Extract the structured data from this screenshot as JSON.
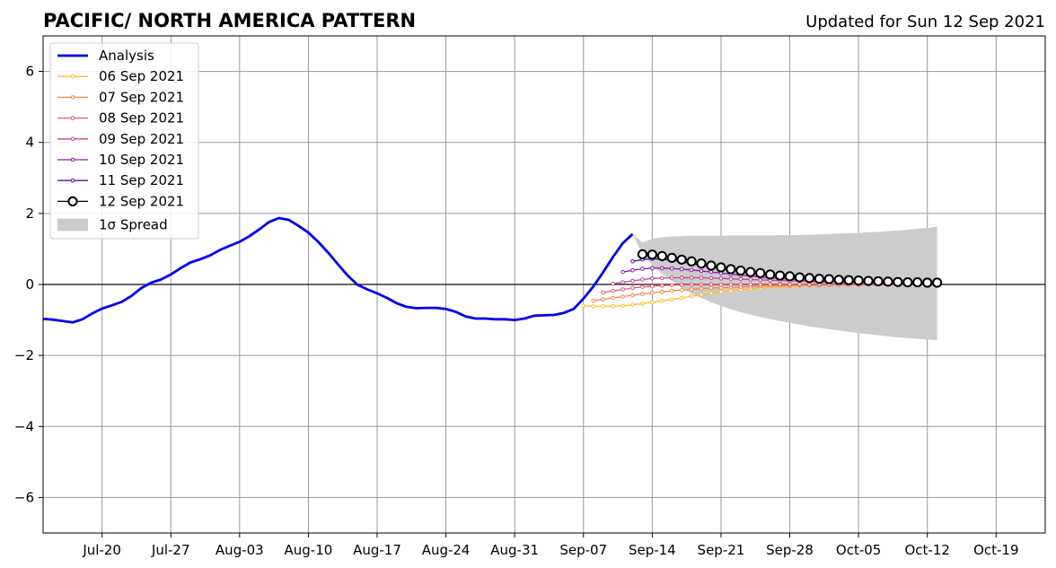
{
  "header": {
    "title": "PACIFIC/ NORTH AMERICA PATTERN",
    "updated": "Updated for Sun 12 Sep 2021"
  },
  "chart_data": {
    "type": "line",
    "title": "PACIFIC/ NORTH AMERICA PATTERN",
    "subtitle": "Updated for Sun 12 Sep 2021",
    "xlabel": "",
    "ylabel": "",
    "x_unit": "days since Jul-14",
    "xlim": [
      0,
      102
    ],
    "ylim": [
      -7,
      7
    ],
    "x_ticks": [
      {
        "x": 6,
        "label": "Jul-20"
      },
      {
        "x": 13,
        "label": "Jul-27"
      },
      {
        "x": 20,
        "label": "Aug-03"
      },
      {
        "x": 27,
        "label": "Aug-10"
      },
      {
        "x": 34,
        "label": "Aug-17"
      },
      {
        "x": 41,
        "label": "Aug-24"
      },
      {
        "x": 48,
        "label": "Aug-31"
      },
      {
        "x": 55,
        "label": "Sep-07"
      },
      {
        "x": 62,
        "label": "Sep-14"
      },
      {
        "x": 69,
        "label": "Sep-21"
      },
      {
        "x": 76,
        "label": "Sep-28"
      },
      {
        "x": 83,
        "label": "Oct-05"
      },
      {
        "x": 90,
        "label": "Oct-12"
      },
      {
        "x": 97,
        "label": "Oct-19"
      }
    ],
    "y_ticks": [
      {
        "y": 6,
        "label": "6"
      },
      {
        "y": 4,
        "label": "4"
      },
      {
        "y": 2,
        "label": "2"
      },
      {
        "y": 0,
        "label": "0"
      },
      {
        "y": -2,
        "label": "−2"
      },
      {
        "y": -4,
        "label": "−4"
      },
      {
        "y": -6,
        "label": "−6"
      }
    ],
    "grid": true,
    "legend": {
      "placement": "top-left",
      "spread_label": "1σ Spread"
    },
    "analysis": {
      "name": "Analysis",
      "color": "#0000ee",
      "x0": 0,
      "values": [
        -0.97,
        -0.99,
        -1.03,
        -1.07,
        -0.98,
        -0.82,
        -0.68,
        -0.59,
        -0.49,
        -0.32,
        -0.1,
        0.05,
        0.14,
        0.28,
        0.46,
        0.62,
        0.71,
        0.82,
        0.97,
        1.09,
        1.2,
        1.36,
        1.55,
        1.76,
        1.87,
        1.82,
        1.65,
        1.46,
        1.2,
        0.9,
        0.57,
        0.25,
        -0.01,
        -0.14,
        -0.25,
        -0.38,
        -0.53,
        -0.63,
        -0.67,
        -0.66,
        -0.66,
        -0.69,
        -0.77,
        -0.9,
        -0.96,
        -0.96,
        -0.98,
        -0.98,
        -1.0,
        -0.96,
        -0.88,
        -0.87,
        -0.86,
        -0.8,
        -0.69,
        -0.4,
        -0.06,
        0.34,
        0.77,
        1.16,
        1.42
      ]
    },
    "forecasts": [
      {
        "name": "06 Sep 2021",
        "color": "#fbbd2e",
        "x0": 55,
        "values": [
          -0.6,
          -0.62,
          -0.62,
          -0.61,
          -0.6,
          -0.57,
          -0.54,
          -0.5,
          -0.46,
          -0.42,
          -0.38,
          -0.33,
          -0.29,
          -0.25,
          -0.21,
          -0.18,
          -0.15,
          -0.12,
          -0.1,
          -0.08,
          -0.06,
          -0.05,
          -0.04,
          -0.03,
          -0.02,
          -0.02,
          -0.01,
          -0.01,
          -0.01,
          0.0,
          0.0,
          0.0,
          0.0,
          0.0,
          0.0,
          0.0
        ]
      },
      {
        "name": "07 Sep 2021",
        "color": "#f4854a",
        "x0": 56,
        "values": [
          -0.46,
          -0.42,
          -0.38,
          -0.34,
          -0.3,
          -0.27,
          -0.24,
          -0.21,
          -0.18,
          -0.16,
          -0.14,
          -0.12,
          -0.1,
          -0.09,
          -0.08,
          -0.07,
          -0.06,
          -0.05,
          -0.04,
          -0.03,
          -0.03,
          -0.02,
          -0.02,
          -0.02,
          -0.01,
          -0.01,
          -0.01,
          -0.01,
          0.0,
          0.0,
          0.0,
          0.0,
          0.0,
          0.0,
          0.0
        ]
      },
      {
        "name": "08 Sep 2021",
        "color": "#e3587a",
        "x0": 57,
        "values": [
          -0.23,
          -0.18,
          -0.14,
          -0.1,
          -0.07,
          -0.05,
          -0.03,
          -0.02,
          -0.01,
          0.0,
          0.0,
          0.0,
          0.0,
          0.0,
          0.0,
          0.0,
          0.0,
          0.0,
          0.0,
          0.0,
          0.0,
          0.0,
          0.0,
          0.0,
          0.0,
          0.0,
          0.0,
          0.0,
          0.0,
          0.0,
          0.0,
          0.0,
          0.0,
          0.0
        ]
      },
      {
        "name": "09 Sep 2021",
        "color": "#c2428f",
        "x0": 58,
        "values": [
          0.02,
          0.06,
          0.1,
          0.14,
          0.17,
          0.18,
          0.19,
          0.19,
          0.19,
          0.19,
          0.18,
          0.17,
          0.16,
          0.15,
          0.14,
          0.13,
          0.12,
          0.11,
          0.1,
          0.09,
          0.08,
          0.07,
          0.06,
          0.05,
          0.04,
          0.04,
          0.03,
          0.03,
          0.02,
          0.02,
          0.02,
          0.01,
          0.01
        ]
      },
      {
        "name": "10 Sep 2021",
        "color": "#9218a8",
        "x0": 59,
        "values": [
          0.35,
          0.4,
          0.44,
          0.46,
          0.46,
          0.45,
          0.43,
          0.41,
          0.38,
          0.35,
          0.32,
          0.29,
          0.26,
          0.24,
          0.21,
          0.19,
          0.17,
          0.15,
          0.13,
          0.12,
          0.1,
          0.09,
          0.08,
          0.07,
          0.06,
          0.05,
          0.04,
          0.04,
          0.03,
          0.03,
          0.02,
          0.02
        ]
      },
      {
        "name": "11 Sep 2021",
        "color": "#5b0ca3",
        "x0": 60,
        "values": [
          0.65,
          0.7,
          0.72,
          0.71,
          0.68,
          0.64,
          0.59,
          0.54,
          0.49,
          0.45,
          0.41,
          0.37,
          0.33,
          0.3,
          0.27,
          0.24,
          0.22,
          0.2,
          0.18,
          0.16,
          0.14,
          0.13,
          0.11,
          0.1,
          0.09,
          0.08,
          0.07,
          0.06,
          0.05,
          0.05,
          0.04
        ]
      }
    ],
    "latest": {
      "name": "12 Sep 2021",
      "color": "#000000",
      "x0": 61,
      "values": [
        0.85,
        0.84,
        0.8,
        0.75,
        0.7,
        0.65,
        0.59,
        0.53,
        0.48,
        0.43,
        0.39,
        0.35,
        0.32,
        0.28,
        0.25,
        0.23,
        0.2,
        0.18,
        0.16,
        0.15,
        0.13,
        0.12,
        0.11,
        0.1,
        0.09,
        0.08,
        0.07,
        0.06,
        0.06,
        0.05,
        0.05
      ]
    },
    "spread": {
      "name": "1σ Spread",
      "color": "#cccccc",
      "x0": 60,
      "upper": [
        1.42,
        1.18,
        1.28,
        1.33,
        1.35,
        1.36,
        1.37,
        1.37,
        1.37,
        1.37,
        1.38,
        1.38,
        1.38,
        1.38,
        1.38,
        1.39,
        1.39,
        1.39,
        1.4,
        1.41,
        1.42,
        1.43,
        1.44,
        1.45,
        1.47,
        1.48,
        1.5,
        1.52,
        1.54,
        1.57,
        1.59,
        1.63
      ],
      "lower": [
        1.42,
        0.85,
        0.55,
        0.3,
        0.1,
        -0.1,
        -0.25,
        -0.38,
        -0.5,
        -0.6,
        -0.7,
        -0.78,
        -0.85,
        -0.92,
        -0.98,
        -1.03,
        -1.08,
        -1.13,
        -1.18,
        -1.22,
        -1.26,
        -1.3,
        -1.34,
        -1.37,
        -1.4,
        -1.43,
        -1.46,
        -1.49,
        -1.51,
        -1.53,
        -1.55,
        -1.57
      ]
    }
  }
}
